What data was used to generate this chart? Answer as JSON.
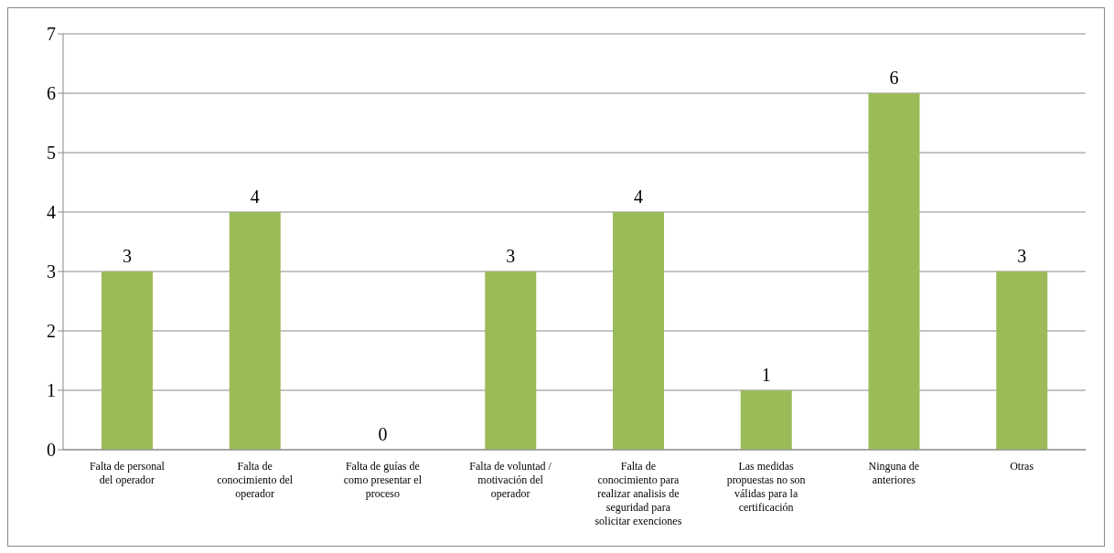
{
  "chart_data": {
    "type": "bar",
    "categories": [
      "Falta de personal del operador",
      "Falta de conocimiento del operador",
      "Falta de guías de como presentar el proceso",
      "Falta de voluntad / motivación del operador",
      "Falta de conocimiento para realizar analisis de seguridad para solicitar exenciones",
      "Las medidas propuestas no son válidas para la certificación",
      "Ninguna de anteriores",
      "Otras"
    ],
    "values": [
      3,
      4,
      0,
      3,
      4,
      1,
      6,
      3
    ],
    "color": "#9bbb59",
    "ylim": [
      0,
      7
    ],
    "yticks": [
      0,
      1,
      2,
      3,
      4,
      5,
      6,
      7
    ],
    "grid": "y",
    "legend": false,
    "data_labels": true
  }
}
